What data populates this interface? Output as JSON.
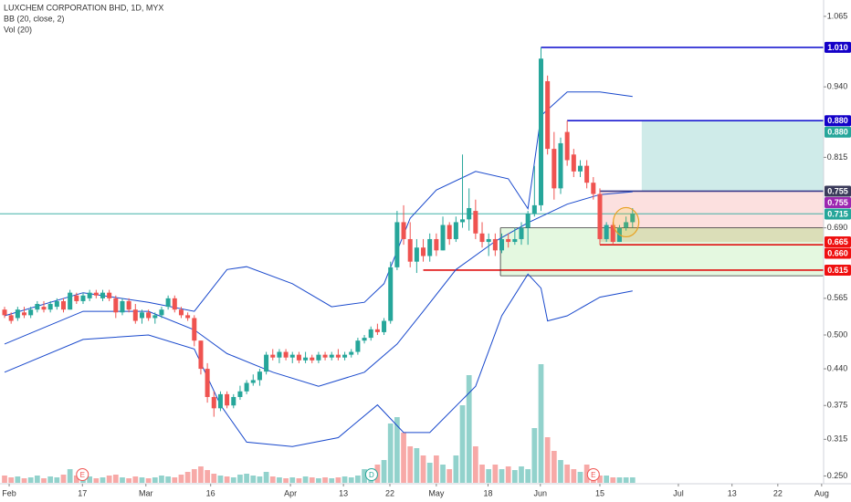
{
  "chart_data": {
    "type": "candlestick",
    "title": "LUXCHEM CORPORATION BHD, 1D, MYX",
    "indicator_label": "BB (20, close, 2)",
    "volume_label": "Vol (20)",
    "up_color": "#26a69a",
    "down_color": "#ef5350",
    "open": [
      0.545,
      0.535,
      0.53,
      0.54,
      0.535,
      0.545,
      0.55,
      0.545,
      0.55,
      0.56,
      0.545,
      0.57,
      0.56,
      0.565,
      0.575,
      0.565,
      0.575,
      0.565,
      0.54,
      0.56,
      0.545,
      0.53,
      0.54,
      0.53,
      0.535,
      0.55,
      0.565,
      0.545,
      0.535,
      0.53,
      0.49,
      0.44,
      0.39,
      0.37,
      0.395,
      0.375,
      0.39,
      0.4,
      0.415,
      0.42,
      0.435,
      0.465,
      0.46,
      0.47,
      0.46,
      0.465,
      0.455,
      0.46,
      0.455,
      0.465,
      0.46,
      0.465,
      0.46,
      0.465,
      0.47,
      0.49,
      0.495,
      0.51,
      0.505,
      0.525,
      0.62,
      0.7,
      0.67,
      0.63,
      0.655,
      0.64,
      0.67,
      0.65,
      0.695,
      0.67,
      0.7,
      0.705,
      0.72,
      0.68,
      0.665,
      0.67,
      0.65,
      0.67,
      0.665,
      0.67,
      0.69,
      0.715,
      0.73,
      0.95,
      0.83,
      0.76,
      0.86,
      0.82,
      0.79,
      0.8,
      0.77,
      0.75,
      0.67,
      0.695,
      0.665,
      0.69,
      0.7
    ],
    "high": [
      0.55,
      0.54,
      0.55,
      0.55,
      0.55,
      0.56,
      0.56,
      0.56,
      0.565,
      0.565,
      0.58,
      0.575,
      0.575,
      0.58,
      0.58,
      0.58,
      0.58,
      0.57,
      0.565,
      0.565,
      0.555,
      0.545,
      0.545,
      0.54,
      0.55,
      0.57,
      0.57,
      0.55,
      0.54,
      0.535,
      0.49,
      0.45,
      0.4,
      0.4,
      0.4,
      0.395,
      0.41,
      0.42,
      0.43,
      0.44,
      0.47,
      0.475,
      0.475,
      0.475,
      0.47,
      0.47,
      0.47,
      0.465,
      0.47,
      0.47,
      0.47,
      0.475,
      0.47,
      0.475,
      0.495,
      0.5,
      0.515,
      0.52,
      0.53,
      0.63,
      0.72,
      0.73,
      0.7,
      0.67,
      0.67,
      0.68,
      0.68,
      0.71,
      0.7,
      0.71,
      0.82,
      0.76,
      0.74,
      0.7,
      0.68,
      0.68,
      0.68,
      0.68,
      0.69,
      0.7,
      0.72,
      0.8,
      1.01,
      0.96,
      0.86,
      0.85,
      0.88,
      0.83,
      0.81,
      0.81,
      0.78,
      0.76,
      0.7,
      0.7,
      0.695,
      0.71,
      0.725
    ],
    "low": [
      0.53,
      0.52,
      0.525,
      0.53,
      0.53,
      0.54,
      0.54,
      0.54,
      0.545,
      0.54,
      0.545,
      0.555,
      0.555,
      0.56,
      0.565,
      0.56,
      0.56,
      0.53,
      0.535,
      0.54,
      0.52,
      0.52,
      0.525,
      0.52,
      0.53,
      0.545,
      0.54,
      0.53,
      0.525,
      0.48,
      0.43,
      0.38,
      0.355,
      0.365,
      0.37,
      0.37,
      0.385,
      0.395,
      0.41,
      0.41,
      0.43,
      0.455,
      0.45,
      0.455,
      0.45,
      0.45,
      0.45,
      0.45,
      0.45,
      0.455,
      0.455,
      0.455,
      0.455,
      0.46,
      0.465,
      0.485,
      0.49,
      0.5,
      0.5,
      0.52,
      0.615,
      0.66,
      0.62,
      0.61,
      0.63,
      0.63,
      0.64,
      0.65,
      0.66,
      0.665,
      0.69,
      0.685,
      0.67,
      0.655,
      0.64,
      0.64,
      0.645,
      0.655,
      0.66,
      0.66,
      0.66,
      0.71,
      0.72,
      0.82,
      0.74,
      0.75,
      0.8,
      0.78,
      0.78,
      0.76,
      0.74,
      0.66,
      0.665,
      0.66,
      0.665,
      0.685,
      0.69
    ],
    "close": [
      0.535,
      0.525,
      0.545,
      0.535,
      0.545,
      0.555,
      0.545,
      0.555,
      0.56,
      0.545,
      0.575,
      0.56,
      0.57,
      0.575,
      0.57,
      0.575,
      0.565,
      0.54,
      0.56,
      0.545,
      0.525,
      0.54,
      0.53,
      0.535,
      0.545,
      0.565,
      0.545,
      0.535,
      0.53,
      0.49,
      0.44,
      0.39,
      0.37,
      0.395,
      0.375,
      0.39,
      0.4,
      0.415,
      0.42,
      0.435,
      0.465,
      0.46,
      0.47,
      0.46,
      0.465,
      0.455,
      0.46,
      0.455,
      0.465,
      0.46,
      0.465,
      0.46,
      0.465,
      0.47,
      0.49,
      0.495,
      0.51,
      0.505,
      0.525,
      0.62,
      0.7,
      0.67,
      0.63,
      0.655,
      0.64,
      0.67,
      0.65,
      0.695,
      0.67,
      0.7,
      0.705,
      0.725,
      0.68,
      0.665,
      0.67,
      0.65,
      0.67,
      0.665,
      0.67,
      0.69,
      0.715,
      0.73,
      0.99,
      0.83,
      0.76,
      0.84,
      0.81,
      0.79,
      0.8,
      0.77,
      0.75,
      0.67,
      0.695,
      0.665,
      0.69,
      0.7,
      0.715
    ],
    "volume": [
      8,
      6,
      7,
      5,
      6,
      8,
      5,
      7,
      6,
      9,
      15,
      8,
      6,
      7,
      5,
      6,
      8,
      9,
      6,
      5,
      7,
      6,
      5,
      6,
      8,
      7,
      6,
      9,
      12,
      15,
      18,
      14,
      10,
      8,
      7,
      6,
      9,
      10,
      8,
      7,
      12,
      7,
      6,
      5,
      6,
      5,
      7,
      6,
      5,
      6,
      5,
      6,
      7,
      6,
      8,
      15,
      10,
      20,
      25,
      65,
      72,
      55,
      40,
      38,
      30,
      22,
      30,
      20,
      15,
      30,
      85,
      118,
      40,
      20,
      15,
      20,
      15,
      18,
      14,
      18,
      15,
      60,
      130,
      50,
      35,
      25,
      20,
      15,
      12,
      20,
      10,
      8,
      8,
      6,
      6,
      6,
      6
    ],
    "bands": {
      "color": "#1848cc",
      "upper": {
        "x": [
          0,
          12,
          22,
          29,
          34,
          37,
          44,
          50,
          55,
          58,
          62,
          66,
          72,
          77,
          80,
          82,
          86,
          91,
          96
        ],
        "values": [
          0.534,
          0.575,
          0.558,
          0.542,
          0.616,
          0.621,
          0.591,
          0.55,
          0.558,
          0.591,
          0.707,
          0.757,
          0.79,
          0.777,
          0.724,
          0.889,
          0.931,
          0.931,
          0.923
        ]
      },
      "basis": {
        "x": [
          0,
          12,
          22,
          29,
          34,
          41,
          48,
          55,
          60,
          64,
          69,
          75,
          80,
          86,
          91,
          96
        ],
        "values": [
          0.484,
          0.542,
          0.542,
          0.509,
          0.467,
          0.434,
          0.409,
          0.434,
          0.484,
          0.542,
          0.616,
          0.666,
          0.699,
          0.732,
          0.749,
          0.754
        ]
      },
      "lower": {
        "x": [
          0,
          12,
          22,
          29,
          33,
          37,
          44,
          51,
          57,
          61,
          65,
          72,
          76,
          80,
          82,
          83,
          86,
          91,
          96
        ],
        "values": [
          0.434,
          0.492,
          0.5,
          0.475,
          0.376,
          0.31,
          0.302,
          0.318,
          0.376,
          0.327,
          0.327,
          0.409,
          0.534,
          0.608,
          0.583,
          0.525,
          0.534,
          0.567,
          0.578
        ]
      }
    },
    "xlim": [
      -0.7,
      125.2
    ],
    "ylim": [
      0.22,
      1.094
    ],
    "xticks": [
      {
        "value": 0.7,
        "label": "Feb"
      },
      {
        "value": 11.9,
        "label": "17"
      },
      {
        "value": 21.6,
        "label": "Mar"
      },
      {
        "value": 31.5,
        "label": "16"
      },
      {
        "value": 43.7,
        "label": "Apr"
      },
      {
        "value": 51.8,
        "label": "13"
      },
      {
        "value": 58.9,
        "label": "22"
      },
      {
        "value": 66,
        "label": "May"
      },
      {
        "value": 73.9,
        "label": "18"
      },
      {
        "value": 81.9,
        "label": "Jun"
      },
      {
        "value": 91,
        "label": "15"
      },
      {
        "value": 103,
        "label": "Jul"
      },
      {
        "value": 111.2,
        "label": "13"
      },
      {
        "value": 118.2,
        "label": "22"
      },
      {
        "value": 124.9,
        "label": "Aug"
      }
    ],
    "yticks": [
      {
        "value": 1.065,
        "label": "1.065"
      },
      {
        "value": 0.94,
        "label": "0.940"
      },
      {
        "value": 0.815,
        "label": "0.815"
      },
      {
        "value": 0.69,
        "label": "0.690"
      },
      {
        "value": 0.565,
        "label": "0.565"
      },
      {
        "value": 0.5,
        "label": "0.500"
      },
      {
        "value": 0.44,
        "label": "0.440"
      },
      {
        "value": 0.375,
        "label": "0.375"
      },
      {
        "value": 0.315,
        "label": "0.315"
      },
      {
        "value": 0.25,
        "label": "0.250"
      }
    ],
    "price_line": {
      "value": 0.715,
      "color": "#26a69a"
    },
    "zones": [
      {
        "top": 0.88,
        "bottom": 0.755,
        "start": 97.4,
        "color": "rgba(38,166,154,0.22)"
      },
      {
        "top": 0.755,
        "bottom": 0.69,
        "start": 91,
        "color": "rgba(239,83,80,0.18)"
      },
      {
        "top": 0.69,
        "bottom": 0.665,
        "start": 91,
        "color": "rgba(220,150,90,0.3)"
      },
      {
        "top": 0.69,
        "bottom": 0.605,
        "start": 75.8,
        "color": "rgba(120,220,100,0.2)"
      }
    ],
    "levels": [
      {
        "value": 1.01,
        "start": 82,
        "color": "#1a1ad0"
      },
      {
        "value": 0.88,
        "start": 86,
        "color": "#1a1ad0"
      },
      {
        "value": 0.755,
        "start": 91,
        "color": "#3a3a8a"
      },
      {
        "value": 0.69,
        "start": 75.8,
        "color": "#333333"
      },
      {
        "value": 0.605,
        "start": 75.8,
        "color": "#333333"
      },
      {
        "value": 0.66,
        "start": 91,
        "color": "#e01010"
      },
      {
        "value": 0.615,
        "start": 64,
        "color": "#e01010"
      }
    ],
    "price_tags": [
      {
        "value": 1.01,
        "label": "1.010",
        "color": "#1400c8"
      },
      {
        "value": 0.88,
        "label": "0.880",
        "color": "#1400c8"
      },
      {
        "value": 0.88,
        "label": "0.880",
        "color": "#26a69a"
      },
      {
        "value": 0.755,
        "label": "0.755",
        "color": "#3a3a5a"
      },
      {
        "value": 0.755,
        "label": "0.755",
        "color": "#9c27b0"
      },
      {
        "value": 0.715,
        "label": "0.715",
        "color": "#26a69a"
      },
      {
        "value": 0.665,
        "label": "0.665",
        "color": "#ef1010"
      },
      {
        "value": 0.66,
        "label": "0.660",
        "color": "#ef1010"
      },
      {
        "value": 0.615,
        "label": "0.615",
        "color": "#ef1010"
      }
    ],
    "events": [
      {
        "index": 11.9,
        "label": "E"
      },
      {
        "index": 56.1,
        "label": "D"
      },
      {
        "index": 90,
        "label": "E"
      }
    ],
    "highlight": {
      "index": 95,
      "value": 0.7
    }
  }
}
